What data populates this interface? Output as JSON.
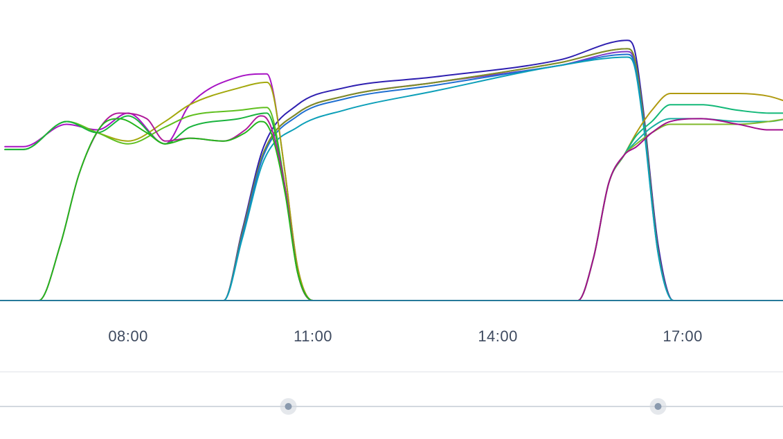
{
  "chart_data": {
    "type": "line",
    "title": "",
    "xlabel": "",
    "ylabel": "",
    "x_ticks": [
      "08:00",
      "11:00",
      "14:00",
      "17:00"
    ],
    "x_range_hours": [
      6.0,
      18.7
    ],
    "ylim": [
      0,
      100
    ],
    "grid": false,
    "legend": "none",
    "series": [
      {
        "color": "#2e1fb0",
        "x": [
          6.0,
          8.2,
          9.0,
          9.55,
          9.85,
          10.2,
          10.75,
          11.5,
          13.0,
          15.0,
          16.1,
          16.2,
          16.35,
          16.6,
          16.85,
          18.7
        ],
        "y": [
          0,
          0,
          0,
          0,
          25,
          55,
          70,
          76,
          80,
          86,
          93,
          91,
          70,
          20,
          0,
          0
        ]
      },
      {
        "color": "#7a39c8",
        "x": [
          6.0,
          8.2,
          9.0,
          9.55,
          9.85,
          10.2,
          10.75,
          11.5,
          13.0,
          15.0,
          16.1,
          16.2,
          16.35,
          16.6,
          16.85,
          18.7
        ],
        "y": [
          0,
          0,
          0,
          0,
          24,
          53,
          67,
          73,
          78,
          84,
          89,
          87,
          67,
          18,
          0,
          0
        ]
      },
      {
        "color": "#c8641e",
        "x": [
          6.0,
          8.2,
          9.0,
          9.55,
          9.85,
          10.2,
          10.75,
          11.5,
          13.0,
          15.0,
          16.1,
          16.2,
          16.35,
          16.6,
          16.85,
          18.7
        ],
        "y": [
          0,
          0,
          0,
          0,
          24,
          53,
          67,
          73,
          78,
          85,
          90,
          88,
          68,
          18,
          0,
          0
        ]
      },
      {
        "color": "#7b8f2a",
        "x": [
          6.0,
          8.2,
          9.0,
          9.55,
          9.85,
          10.2,
          10.75,
          11.5,
          13.0,
          15.0,
          16.1,
          16.2,
          16.35,
          16.6,
          16.85,
          18.7
        ],
        "y": [
          0,
          0,
          0,
          0,
          24,
          53,
          67,
          73,
          78,
          85,
          90,
          88,
          68,
          18,
          0,
          0
        ]
      },
      {
        "color": "#1f6fd0",
        "x": [
          6.0,
          8.2,
          9.0,
          9.55,
          9.85,
          10.2,
          10.75,
          11.5,
          13.0,
          15.0,
          16.1,
          16.2,
          16.35,
          16.6,
          16.85,
          18.7
        ],
        "y": [
          0,
          0,
          0,
          0,
          23,
          52,
          66,
          72,
          77,
          84,
          88,
          86,
          66,
          17,
          0,
          0
        ]
      },
      {
        "color": "#0c9fb8",
        "x": [
          6.0,
          8.2,
          9.0,
          9.55,
          9.85,
          10.2,
          10.75,
          11.5,
          13.0,
          15.0,
          16.1,
          16.2,
          16.35,
          16.6,
          16.85,
          18.7
        ],
        "y": [
          0,
          0,
          0,
          0,
          22,
          50,
          62,
          68,
          75,
          84,
          87,
          85,
          65,
          17,
          0,
          0
        ]
      },
      {
        "color": "#a713c4",
        "x": [
          6.0,
          6.3,
          7.0,
          7.5,
          8.0,
          8.6,
          9.0,
          9.8,
          10.25,
          10.35,
          10.55,
          10.75,
          11.0,
          11.2,
          18.7
        ],
        "y": [
          55,
          55,
          63,
          61,
          67,
          56,
          70,
          80,
          81,
          75,
          45,
          12,
          0,
          0,
          0
        ]
      },
      {
        "color": "#a3a80c",
        "x": [
          6.0,
          6.3,
          7.0,
          7.5,
          8.0,
          8.6,
          9.0,
          9.8,
          10.25,
          10.35,
          10.55,
          10.75,
          11.0,
          11.2,
          18.7
        ],
        "y": [
          54,
          54,
          64,
          60,
          57,
          64,
          70,
          76,
          78,
          74,
          45,
          12,
          0,
          0,
          0
        ]
      },
      {
        "color": "#5fbf1e",
        "x": [
          6.0,
          6.3,
          7.0,
          7.5,
          8.0,
          8.6,
          9.0,
          9.8,
          10.25,
          10.35,
          10.55,
          10.75,
          11.0,
          11.2,
          18.7
        ],
        "y": [
          54,
          54,
          64,
          60,
          56,
          62,
          66,
          68,
          69,
          65,
          40,
          10,
          0,
          0,
          0
        ]
      },
      {
        "color": "#19b33d",
        "x": [
          6.0,
          6.3,
          7.0,
          7.5,
          8.0,
          8.6,
          9.0,
          9.8,
          10.25,
          10.35,
          10.55,
          10.75,
          11.0,
          11.2,
          18.7
        ],
        "y": [
          54,
          54,
          64,
          60,
          66,
          56,
          62,
          65,
          67,
          63,
          40,
          10,
          0,
          0,
          0
        ]
      },
      {
        "color": "#b01b9a",
        "x": [
          6.0,
          6.15,
          6.55,
          6.9,
          7.2,
          7.55,
          7.85,
          8.3,
          8.6,
          9.0,
          9.55,
          9.9,
          10.15,
          10.25,
          10.35,
          10.55,
          10.75,
          11.0,
          11.2,
          18.7
        ],
        "y": [
          0,
          0,
          0,
          20,
          45,
          62,
          67,
          65,
          57,
          58,
          57,
          61,
          66,
          65,
          60,
          40,
          10,
          0,
          0,
          0
        ]
      },
      {
        "color": "#25b51c",
        "x": [
          6.0,
          6.15,
          6.55,
          6.9,
          7.2,
          7.55,
          7.85,
          8.3,
          8.6,
          9.0,
          9.55,
          9.9,
          10.15,
          10.25,
          10.35,
          10.55,
          10.75,
          11.0,
          11.2,
          18.7
        ],
        "y": [
          0,
          0,
          0,
          20,
          45,
          62,
          65,
          60,
          56,
          58,
          57,
          60,
          64,
          63,
          58,
          38,
          10,
          0,
          0,
          0
        ]
      },
      {
        "color": "#b09a10",
        "x": [
          6.0,
          15.05,
          15.3,
          15.55,
          15.8,
          16.05,
          16.25,
          16.5,
          16.8,
          17.3,
          17.9,
          18.4,
          18.7
        ],
        "y": [
          0,
          0,
          0,
          15,
          42,
          52,
          60,
          68,
          74,
          74,
          74,
          73,
          71
        ]
      },
      {
        "color": "#12b878",
        "x": [
          6.0,
          15.05,
          15.3,
          15.55,
          15.8,
          16.05,
          16.25,
          16.5,
          16.8,
          17.3,
          17.9,
          18.4,
          18.7
        ],
        "y": [
          0,
          0,
          0,
          15,
          42,
          52,
          59,
          64,
          70,
          70,
          68,
          67,
          67
        ]
      },
      {
        "color": "#1aaea0",
        "x": [
          6.0,
          15.05,
          15.3,
          15.55,
          15.8,
          16.05,
          16.25,
          16.5,
          16.8,
          17.3,
          17.9,
          18.4,
          18.7
        ],
        "y": [
          0,
          0,
          0,
          15,
          42,
          52,
          57,
          62,
          65,
          65,
          64,
          64,
          65
        ]
      },
      {
        "color": "#7fb82a",
        "x": [
          6.0,
          15.05,
          15.3,
          15.55,
          15.8,
          16.05,
          16.25,
          16.5,
          16.8,
          17.3,
          17.9,
          18.4,
          18.7
        ],
        "y": [
          0,
          0,
          0,
          15,
          42,
          52,
          56,
          60,
          63,
          63,
          63,
          64,
          65
        ]
      },
      {
        "color": "#a10f8c",
        "x": [
          6.0,
          15.05,
          15.3,
          15.55,
          15.8,
          16.05,
          16.25,
          16.5,
          16.8,
          17.3,
          17.9,
          18.4,
          18.7
        ],
        "y": [
          0,
          0,
          0,
          15,
          42,
          52,
          55,
          60,
          64,
          65,
          63,
          61,
          61
        ]
      }
    ]
  },
  "axis_color": "#26799a",
  "divider_color": "#e8ebef",
  "slider_track_color": "#d3d8df",
  "slider_handle_color": "#8a9aae",
  "range_slider": {
    "handles": [
      {
        "name": "start-handle",
        "hour": 10.6
      },
      {
        "name": "end-handle",
        "hour": 16.6
      }
    ]
  }
}
